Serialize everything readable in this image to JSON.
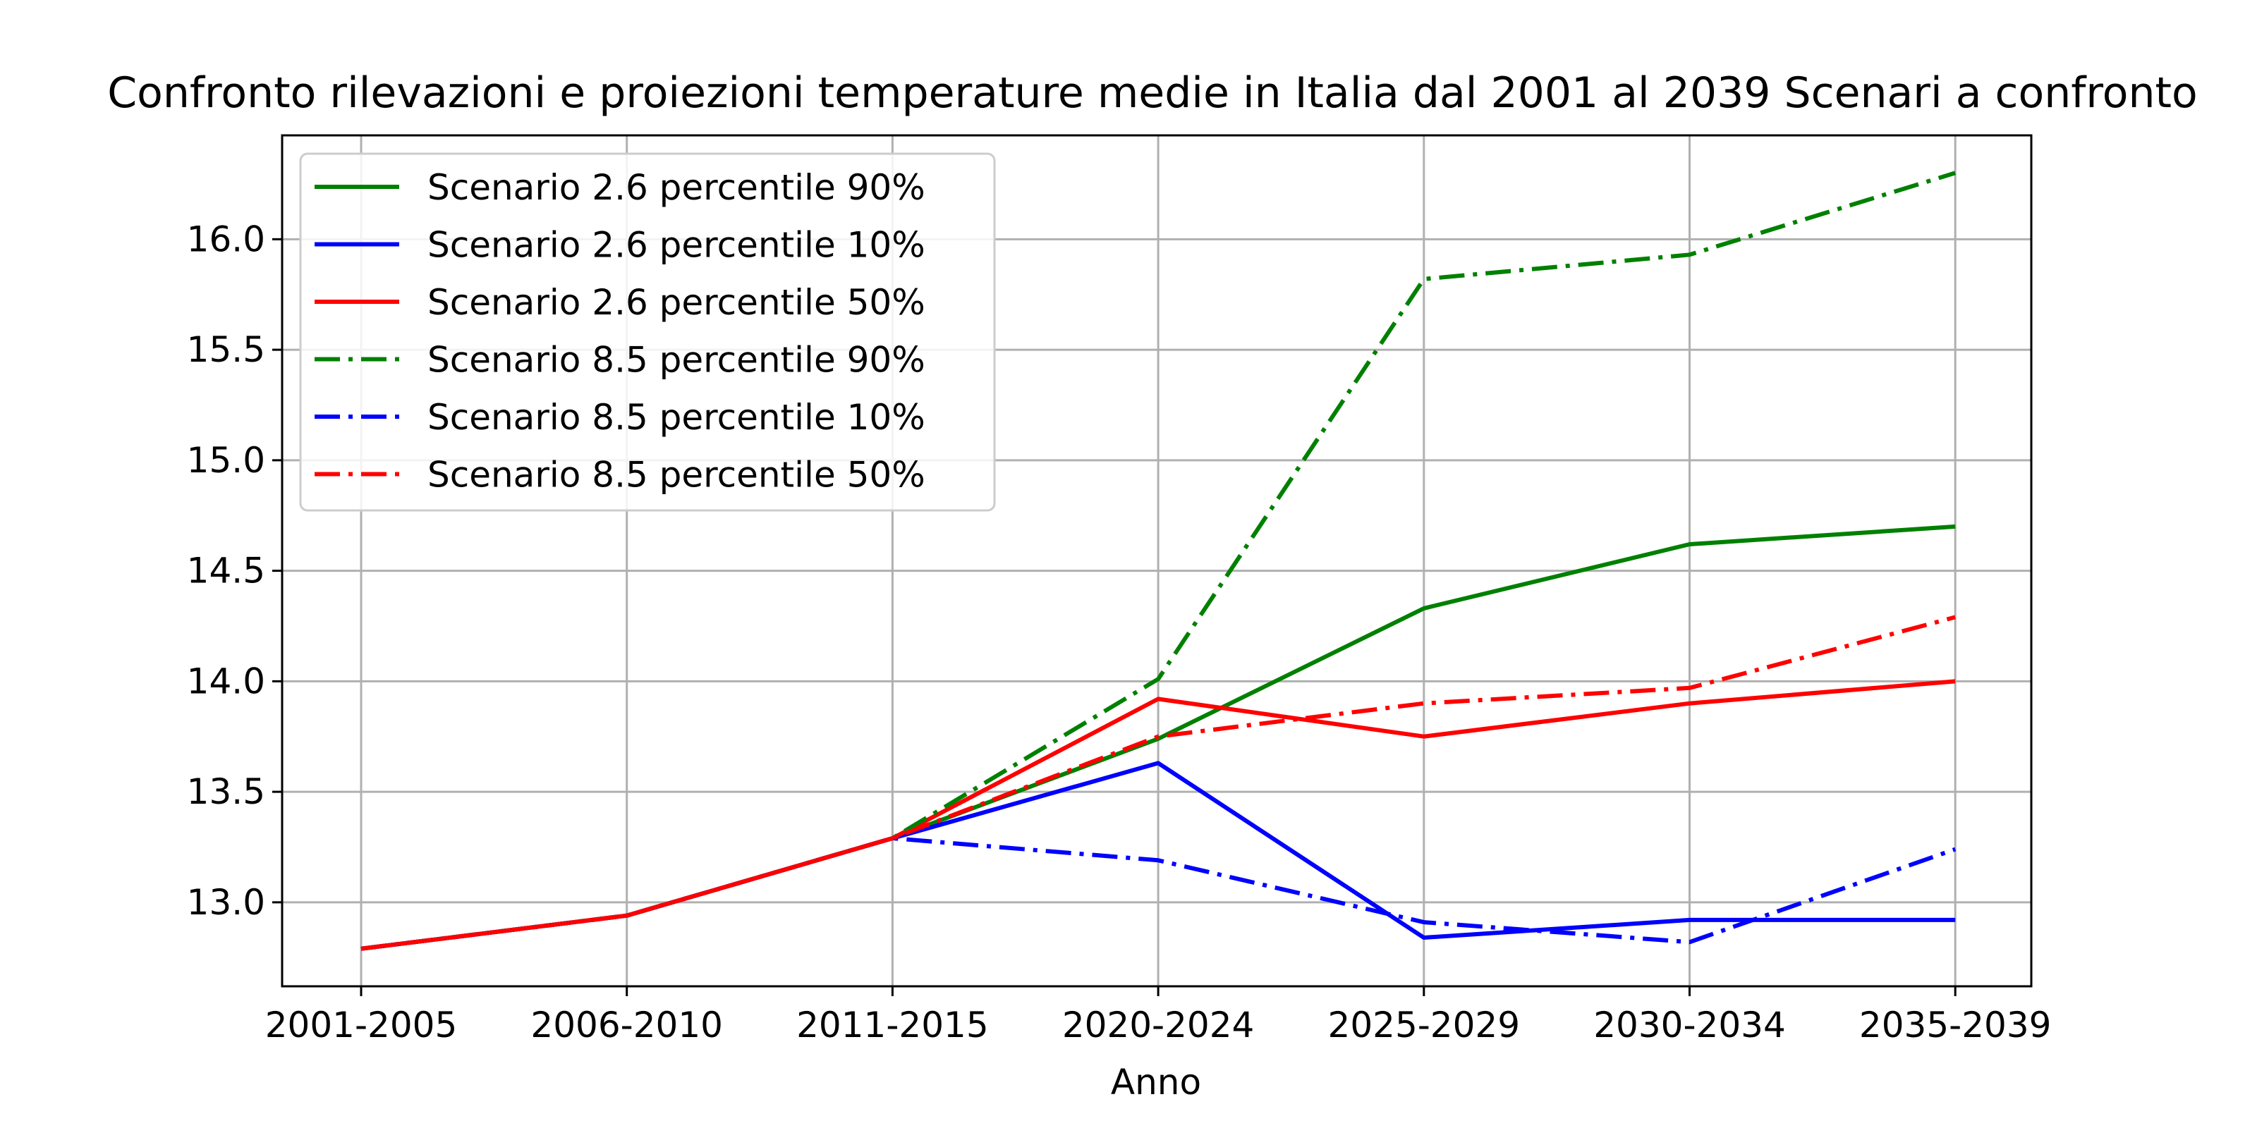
{
  "chart_data": {
    "type": "line",
    "title": "Confronto rilevazioni e proiezioni temperature medie in Italia dal 2001 al 2039 Scenari a confronto",
    "xlabel": "Anno",
    "ylabel": "",
    "categories": [
      "2001-2005",
      "2006-2010",
      "2011-2015",
      "2020-2024",
      "2025-2029",
      "2030-2034",
      "2035-2039"
    ],
    "ylim": [
      12.62,
      16.47
    ],
    "yticks": [
      13.0,
      13.5,
      14.0,
      14.5,
      15.0,
      15.5,
      16.0
    ],
    "grid": true,
    "legend_position": "top-left",
    "series": [
      {
        "name": "Scenario 2.6 percentile 90%",
        "color": "#008000",
        "style": "solid",
        "values": [
          12.79,
          12.94,
          13.29,
          13.74,
          14.33,
          14.62,
          14.7
        ]
      },
      {
        "name": "Scenario 2.6 percentile 10%",
        "color": "#0000ff",
        "style": "solid",
        "values": [
          12.79,
          12.94,
          13.29,
          13.63,
          12.84,
          12.92,
          12.92
        ]
      },
      {
        "name": "Scenario 2.6 percentile 50%",
        "color": "#ff0000",
        "style": "solid",
        "values": [
          12.79,
          12.94,
          13.29,
          13.92,
          13.75,
          13.9,
          14.0
        ]
      },
      {
        "name": "Scenario 8.5 percentile 90%",
        "color": "#008000",
        "style": "dashdot",
        "values": [
          12.79,
          12.94,
          13.29,
          14.01,
          15.82,
          15.93,
          16.3
        ]
      },
      {
        "name": "Scenario 8.5 percentile 10%",
        "color": "#0000ff",
        "style": "dashdot",
        "values": [
          12.79,
          12.94,
          13.29,
          13.19,
          12.91,
          12.82,
          13.24
        ]
      },
      {
        "name": "Scenario 8.5 percentile 50%",
        "color": "#ff0000",
        "style": "dashdot",
        "values": [
          12.79,
          12.94,
          13.29,
          13.75,
          13.9,
          13.97,
          14.29
        ]
      }
    ]
  }
}
